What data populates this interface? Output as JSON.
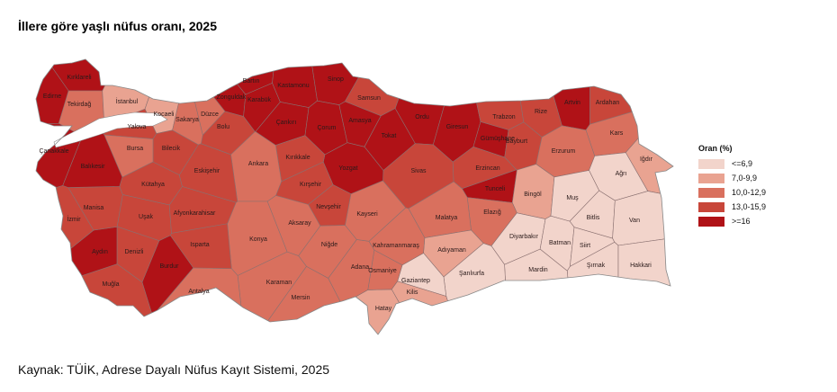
{
  "title": "İllere göre yaşlı nüfus oranı, 2025",
  "source": "Kaynak: TÜİK, Adrese Dayalı Nüfus Kayıt Sistemi, 2025",
  "legend": {
    "title": "Oran (%)",
    "classes": [
      {
        "label": "<=6,9",
        "color": "#f2d4cb"
      },
      {
        "label": "7,0-9,9",
        "color": "#e9a391"
      },
      {
        "label": "10,0-12,9",
        "color": "#d9705e"
      },
      {
        "label": "13,0-15,9",
        "color": "#c8463a"
      },
      {
        "label": ">=16",
        "color": "#b01217"
      }
    ]
  },
  "provinces": [
    {
      "name": "Kırklareli",
      "cls": 5
    },
    {
      "name": "Edirne",
      "cls": 5
    },
    {
      "name": "Tekirdağ",
      "cls": 3
    },
    {
      "name": "İstanbul",
      "cls": 2
    },
    {
      "name": "Kocaeli",
      "cls": 2
    },
    {
      "name": "Yalova",
      "cls": 4
    },
    {
      "name": "Sakarya",
      "cls": 3
    },
    {
      "name": "Düzce",
      "cls": 3
    },
    {
      "name": "Bolu",
      "cls": 4
    },
    {
      "name": "Zonguldak",
      "cls": 5
    },
    {
      "name": "Bartın",
      "cls": 5
    },
    {
      "name": "Karabük",
      "cls": 5
    },
    {
      "name": "Kastamonu",
      "cls": 5
    },
    {
      "name": "Sinop",
      "cls": 5
    },
    {
      "name": "Samsun",
      "cls": 4
    },
    {
      "name": "Çankırı",
      "cls": 5
    },
    {
      "name": "Çorum",
      "cls": 5
    },
    {
      "name": "Amasya",
      "cls": 5
    },
    {
      "name": "Tokat",
      "cls": 5
    },
    {
      "name": "Ordu",
      "cls": 5
    },
    {
      "name": "Giresun",
      "cls": 5
    },
    {
      "name": "Trabzon",
      "cls": 4
    },
    {
      "name": "Rize",
      "cls": 4
    },
    {
      "name": "Artvin",
      "cls": 5
    },
    {
      "name": "Ardahan",
      "cls": 4
    },
    {
      "name": "Gümüşhane",
      "cls": 5
    },
    {
      "name": "Bayburt",
      "cls": 4
    },
    {
      "name": "Kars",
      "cls": 3
    },
    {
      "name": "Erzurum",
      "cls": 3
    },
    {
      "name": "Iğdır",
      "cls": 2
    },
    {
      "name": "Ağrı",
      "cls": 1
    },
    {
      "name": "Erzincan",
      "cls": 4
    },
    {
      "name": "Tunceli",
      "cls": 5
    },
    {
      "name": "Bingöl",
      "cls": 2
    },
    {
      "name": "Muş",
      "cls": 1
    },
    {
      "name": "Elazığ",
      "cls": 3
    },
    {
      "name": "Malatya",
      "cls": 3
    },
    {
      "name": "Bitlis",
      "cls": 1
    },
    {
      "name": "Van",
      "cls": 1
    },
    {
      "name": "Diyarbakır",
      "cls": 1
    },
    {
      "name": "Batman",
      "cls": 1
    },
    {
      "name": "Siirt",
      "cls": 1
    },
    {
      "name": "Şırnak",
      "cls": 1
    },
    {
      "name": "Hakkari",
      "cls": 1
    },
    {
      "name": "Mardin",
      "cls": 1
    },
    {
      "name": "Şanlıurfa",
      "cls": 1
    },
    {
      "name": "Adıyaman",
      "cls": 2
    },
    {
      "name": "Gaziantep",
      "cls": 1
    },
    {
      "name": "Kilis",
      "cls": 2
    },
    {
      "name": "Hatay",
      "cls": 2
    },
    {
      "name": "Osmaniye",
      "cls": 3
    },
    {
      "name": "Adana",
      "cls": 3
    },
    {
      "name": "Kahramanmaraş",
      "cls": 3
    },
    {
      "name": "Kayseri",
      "cls": 3
    },
    {
      "name": "Sivas",
      "cls": 4
    },
    {
      "name": "Yozgat",
      "cls": 5
    },
    {
      "name": "Kırıkkale",
      "cls": 4
    },
    {
      "name": "Kırşehir",
      "cls": 4
    },
    {
      "name": "Nevşehir",
      "cls": 4
    },
    {
      "name": "Aksaray",
      "cls": 3
    },
    {
      "name": "Niğde",
      "cls": 3
    },
    {
      "name": "Ankara",
      "cls": 3
    },
    {
      "name": "Konya",
      "cls": 3
    },
    {
      "name": "Karaman",
      "cls": 3
    },
    {
      "name": "Mersin",
      "cls": 3
    },
    {
      "name": "Antalya",
      "cls": 3
    },
    {
      "name": "Burdur",
      "cls": 5
    },
    {
      "name": "Isparta",
      "cls": 4
    },
    {
      "name": "Denizli",
      "cls": 4
    },
    {
      "name": "Muğla",
      "cls": 4
    },
    {
      "name": "Aydın",
      "cls": 5
    },
    {
      "name": "İzmir",
      "cls": 4
    },
    {
      "name": "Manisa",
      "cls": 4
    },
    {
      "name": "Uşak",
      "cls": 4
    },
    {
      "name": "Afyonkarahisar",
      "cls": 4
    },
    {
      "name": "Kütahya",
      "cls": 4
    },
    {
      "name": "Eskişehir",
      "cls": 4
    },
    {
      "name": "Bilecik",
      "cls": 4
    },
    {
      "name": "Bursa",
      "cls": 3
    },
    {
      "name": "Balıkesir",
      "cls": 5
    },
    {
      "name": "Çanakkale",
      "cls": 5
    }
  ]
}
